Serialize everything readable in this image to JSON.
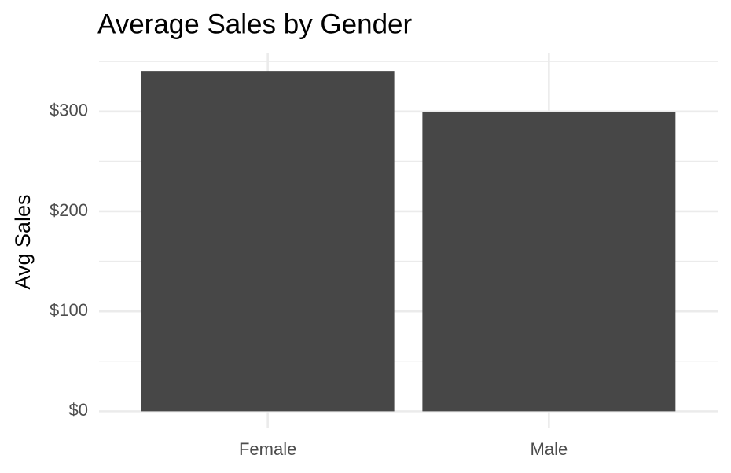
{
  "chart_data": {
    "type": "bar",
    "title": "Average Sales by Gender",
    "y_label": "Avg Sales",
    "categories": [
      "Female",
      "Male"
    ],
    "values": [
      340.6,
      299.2
    ],
    "color": "#474747",
    "ylim": [
      -17,
      358
    ],
    "yticks": [
      {
        "value": 0,
        "label": "$0"
      },
      {
        "value": 100,
        "label": "$100"
      },
      {
        "value": 200,
        "label": "$200"
      },
      {
        "value": 300,
        "label": "$300"
      }
    ],
    "y_minor_ticks": [
      50,
      150,
      250,
      350
    ],
    "grid": true
  }
}
